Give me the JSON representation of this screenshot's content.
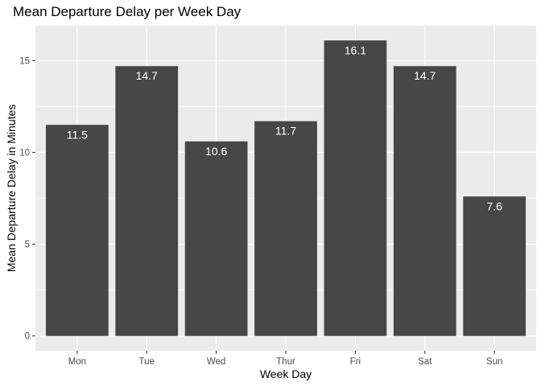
{
  "chart_data": {
    "type": "bar",
    "title": "Mean Departure Delay per Week Day",
    "xlabel": "Week Day",
    "ylabel": "Mean Departure Delay in Minutes",
    "categories": [
      "Mon",
      "Tue",
      "Wed",
      "Thur",
      "Fri",
      "Sat",
      "Sun"
    ],
    "values": [
      11.5,
      14.7,
      10.6,
      11.7,
      16.1,
      14.7,
      7.6
    ],
    "value_labels": [
      "11.5",
      "14.7",
      "10.6",
      "11.7",
      "16.1",
      "14.7",
      "7.6"
    ],
    "yticks": [
      0,
      5,
      10,
      15
    ],
    "ytick_labels": [
      "0",
      "5",
      "10",
      "15"
    ],
    "ylim": [
      -0.8,
      16.9
    ],
    "grid": true,
    "colors": {
      "panel_background": "#ebebeb",
      "grid_major": "#ffffff",
      "bar_fill": "#474747",
      "data_label": "#ffffff",
      "tick_text": "#4d4d4d",
      "tick_mark": "#333333"
    }
  }
}
